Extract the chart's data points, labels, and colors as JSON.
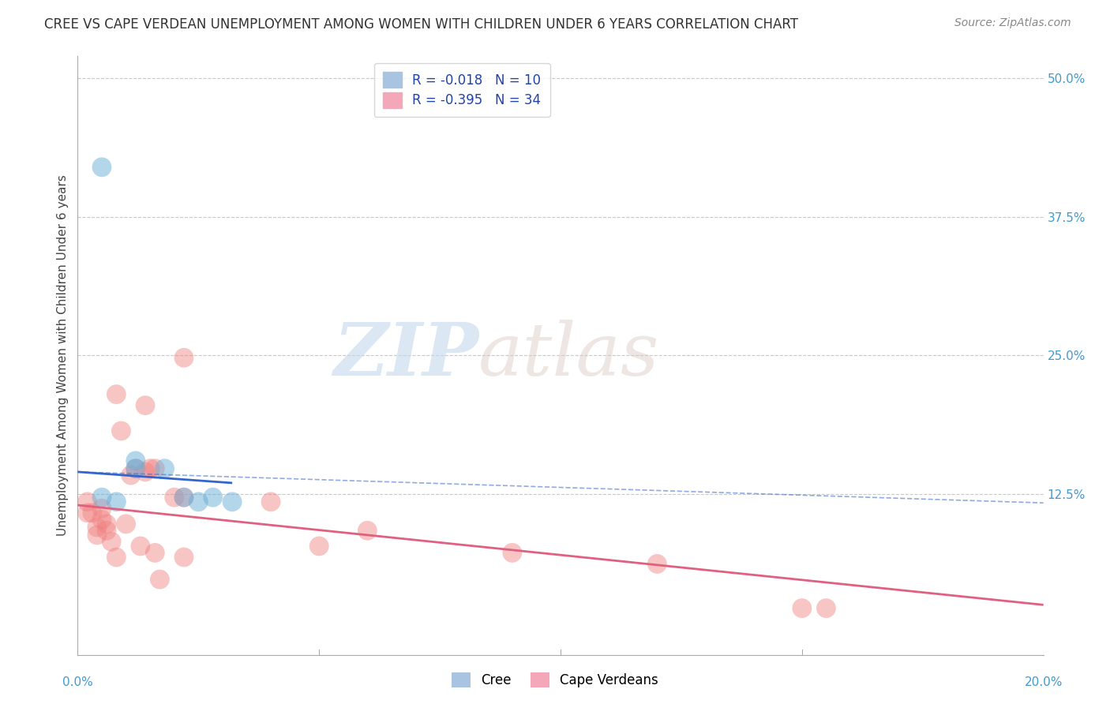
{
  "title": "CREE VS CAPE VERDEAN UNEMPLOYMENT AMONG WOMEN WITH CHILDREN UNDER 6 YEARS CORRELATION CHART",
  "source": "Source: ZipAtlas.com",
  "ylabel": "Unemployment Among Women with Children Under 6 years",
  "ytick_labels": [
    "50.0%",
    "37.5%",
    "25.0%",
    "12.5%"
  ],
  "xlim": [
    0.0,
    0.2
  ],
  "ylim": [
    -0.02,
    0.52
  ],
  "legend_entries": [
    {
      "label": "R = -0.018   N = 10",
      "color": "#a8c4e0"
    },
    {
      "label": "R = -0.395   N = 34",
      "color": "#f4a7b9"
    }
  ],
  "cree_color": "#6aaed6",
  "cape_verdean_color": "#f08080",
  "cree_line_color": "#3366cc",
  "cape_verdean_line_color": "#e06080",
  "cree_line_solid": [
    [
      0.0,
      0.145
    ],
    [
      0.032,
      0.135
    ]
  ],
  "cree_line_dashed": [
    [
      0.0,
      0.145
    ],
    [
      0.2,
      0.117
    ]
  ],
  "cape_verdean_line": [
    [
      0.0,
      0.115
    ],
    [
      0.2,
      0.025
    ]
  ],
  "watermark_zip": "ZIP",
  "watermark_atlas": "atlas",
  "cree_points": [
    [
      0.005,
      0.42
    ],
    [
      0.012,
      0.155
    ],
    [
      0.012,
      0.148
    ],
    [
      0.018,
      0.148
    ],
    [
      0.022,
      0.122
    ],
    [
      0.025,
      0.118
    ],
    [
      0.028,
      0.122
    ],
    [
      0.032,
      0.118
    ],
    [
      0.005,
      0.122
    ],
    [
      0.008,
      0.118
    ]
  ],
  "cape_verdean_points": [
    [
      0.002,
      0.118
    ],
    [
      0.002,
      0.108
    ],
    [
      0.003,
      0.108
    ],
    [
      0.004,
      0.095
    ],
    [
      0.004,
      0.088
    ],
    [
      0.005,
      0.112
    ],
    [
      0.005,
      0.102
    ],
    [
      0.006,
      0.098
    ],
    [
      0.006,
      0.092
    ],
    [
      0.007,
      0.082
    ],
    [
      0.008,
      0.068
    ],
    [
      0.008,
      0.215
    ],
    [
      0.009,
      0.182
    ],
    [
      0.01,
      0.098
    ],
    [
      0.011,
      0.142
    ],
    [
      0.012,
      0.148
    ],
    [
      0.013,
      0.078
    ],
    [
      0.014,
      0.145
    ],
    [
      0.014,
      0.205
    ],
    [
      0.015,
      0.148
    ],
    [
      0.016,
      0.148
    ],
    [
      0.016,
      0.072
    ],
    [
      0.017,
      0.048
    ],
    [
      0.02,
      0.122
    ],
    [
      0.022,
      0.122
    ],
    [
      0.022,
      0.068
    ],
    [
      0.022,
      0.248
    ],
    [
      0.04,
      0.118
    ],
    [
      0.05,
      0.078
    ],
    [
      0.06,
      0.092
    ],
    [
      0.09,
      0.072
    ],
    [
      0.12,
      0.062
    ],
    [
      0.15,
      0.022
    ],
    [
      0.155,
      0.022
    ]
  ],
  "grid_color": "#c8c8c8",
  "background_color": "#ffffff"
}
